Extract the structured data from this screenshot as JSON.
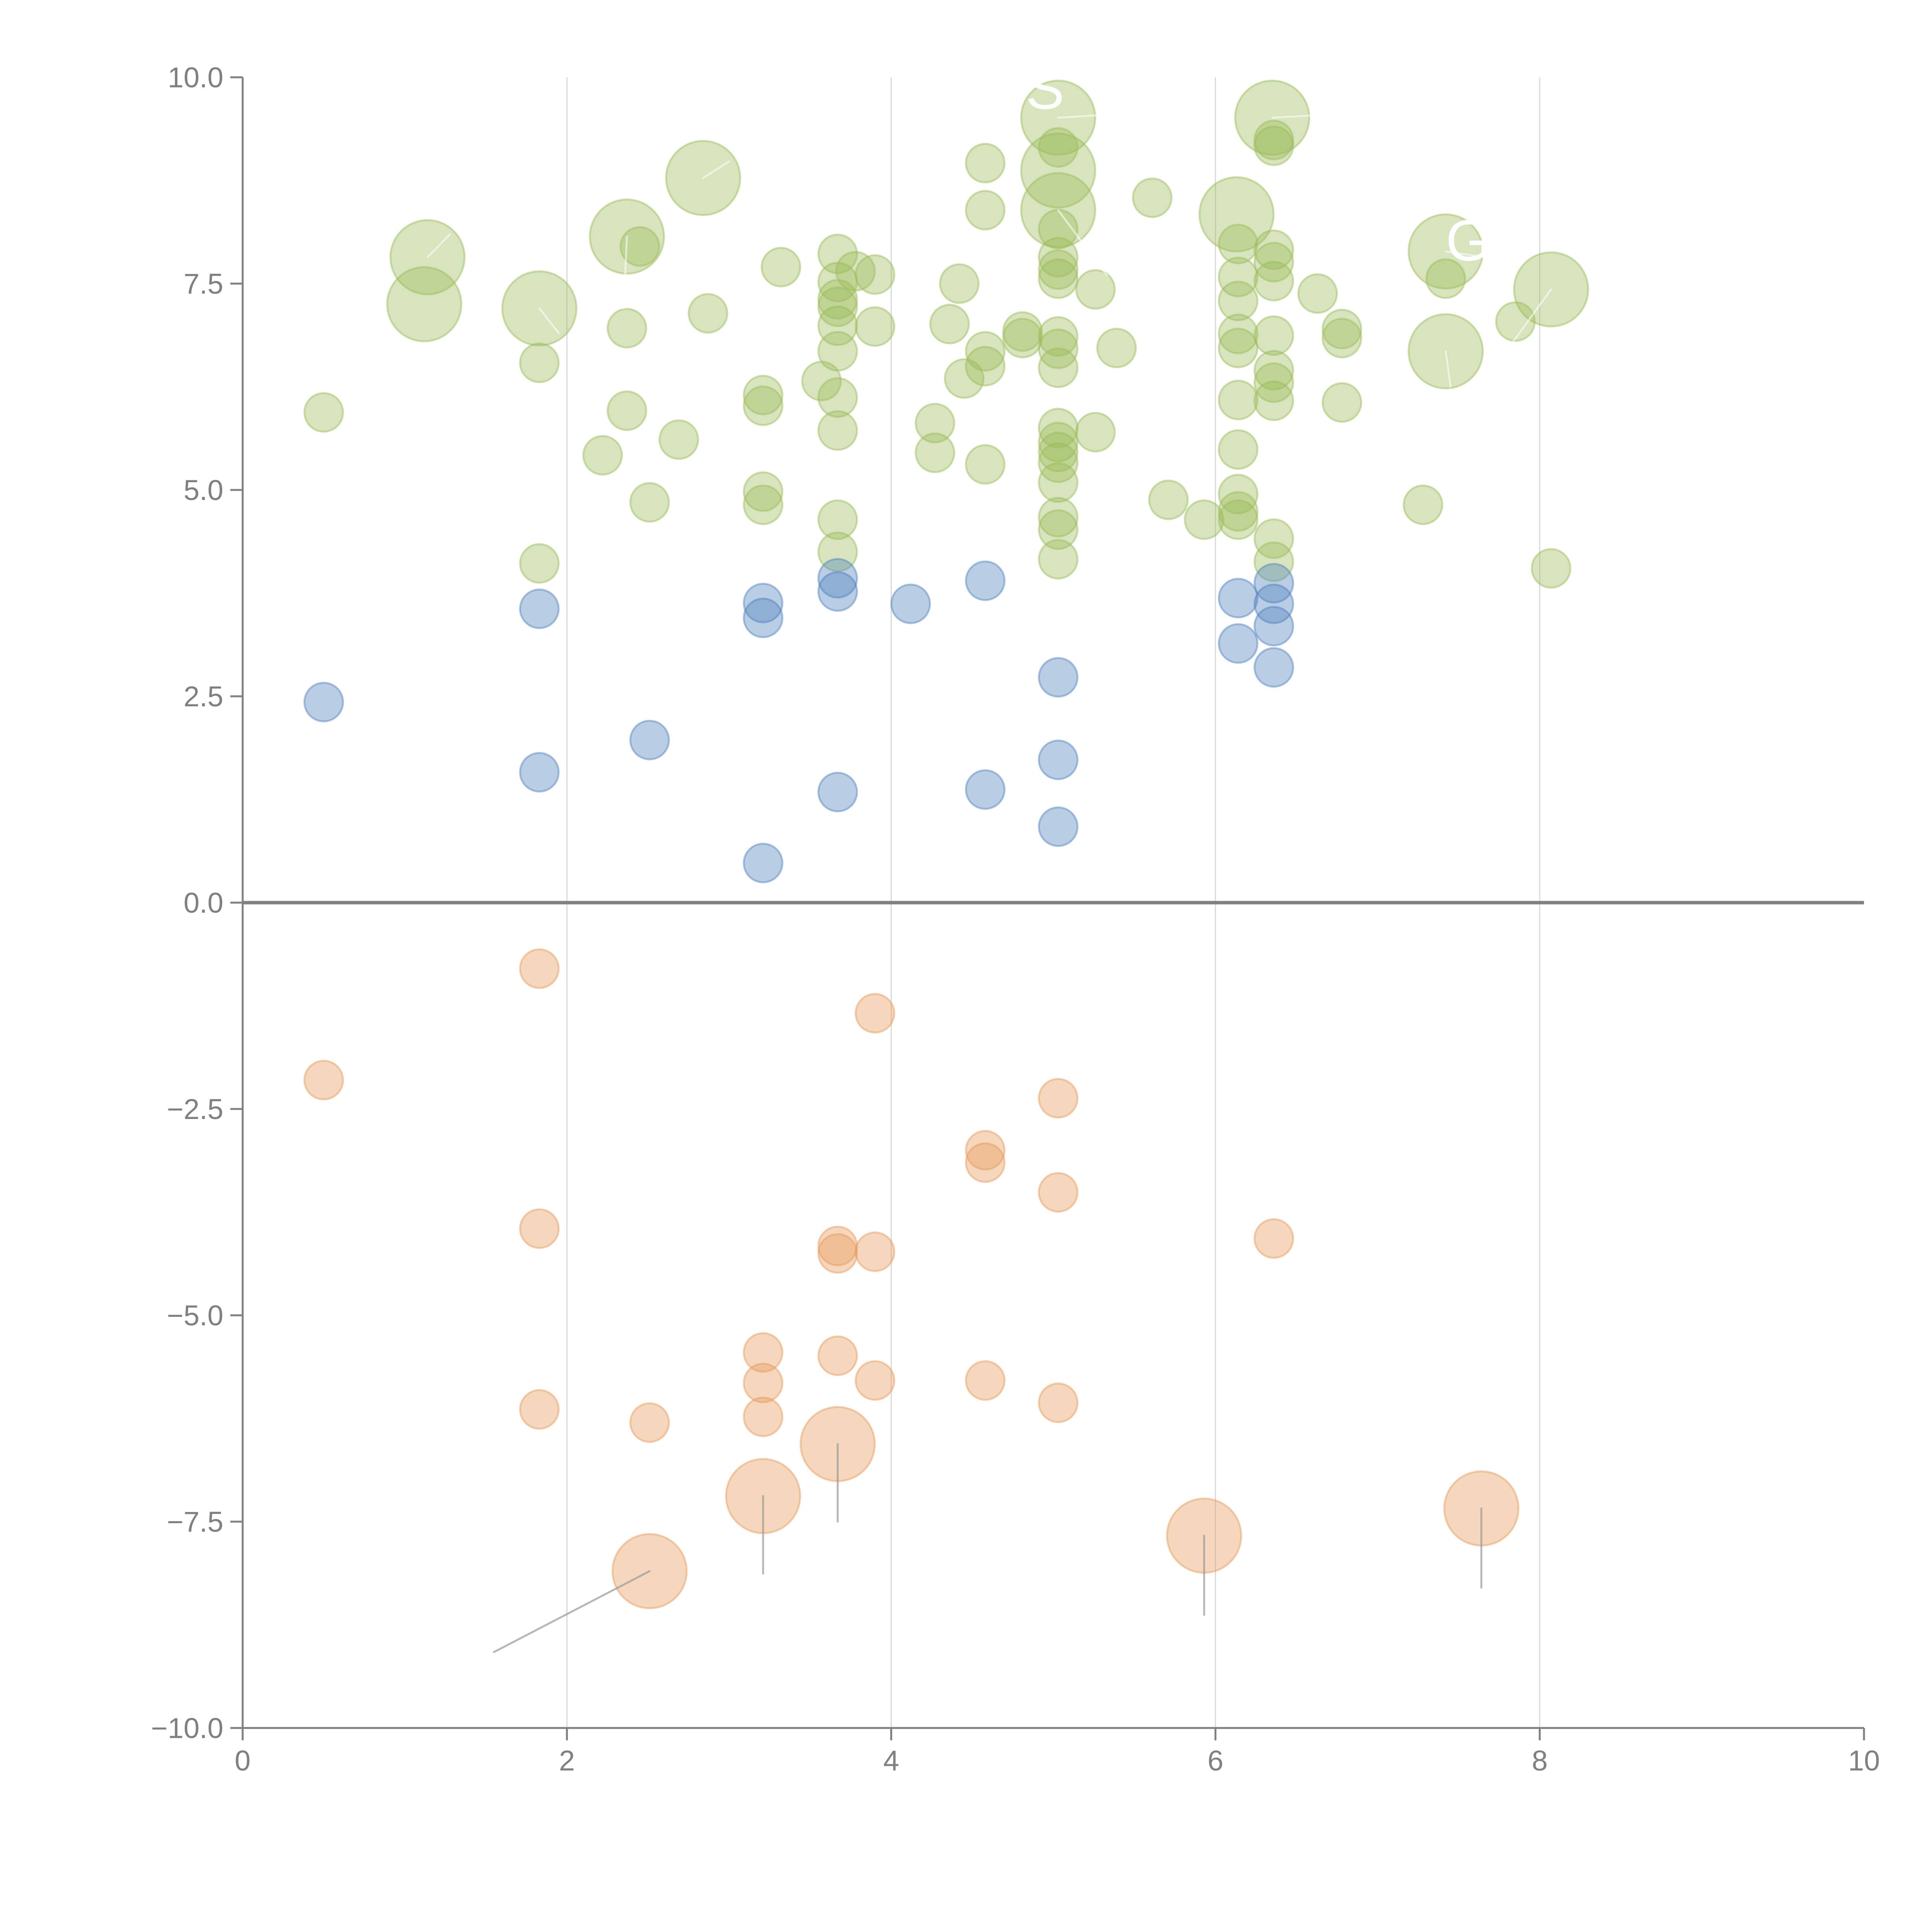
{
  "chart_data": {
    "type": "scatter",
    "title": "",
    "xlabel": "",
    "ylabel": "",
    "xlim": [
      0,
      10
    ],
    "ylim": [
      -10,
      10
    ],
    "x_ticks": [
      "0",
      "2",
      "4",
      "6",
      "8",
      "10"
    ],
    "y_ticks": [
      "10.0",
      "7.5",
      "5.0",
      "2.5",
      "0.0",
      "−2.5",
      "−5.0",
      "−7.5",
      "−10.0"
    ],
    "grid": "vertical at x=2,4,6,8",
    "zero_line": true,
    "legend": "none",
    "series": [
      {
        "name": "green",
        "color": "#9bbb59",
        "points": [
          [
            0.5,
            5.94,
            "s"
          ],
          [
            1.14,
            7.82,
            "l"
          ],
          [
            1.12,
            7.25,
            "l"
          ],
          [
            1.83,
            7.2,
            "l"
          ],
          [
            1.83,
            6.54,
            "s"
          ],
          [
            1.83,
            4.11,
            "s"
          ],
          [
            2.37,
            8.07,
            "l"
          ],
          [
            2.45,
            7.95,
            "s"
          ],
          [
            2.37,
            6.96,
            "s"
          ],
          [
            2.37,
            5.96,
            "s"
          ],
          [
            2.22,
            5.42,
            "s"
          ],
          [
            2.51,
            4.85,
            "s"
          ],
          [
            2.69,
            5.61,
            "s"
          ],
          [
            2.84,
            8.78,
            "l"
          ],
          [
            2.87,
            7.14,
            "s"
          ],
          [
            3.21,
            6.15,
            "s"
          ],
          [
            3.21,
            6.02,
            "s"
          ],
          [
            3.21,
            4.98,
            "s"
          ],
          [
            3.21,
            4.82,
            "s"
          ],
          [
            3.32,
            7.7,
            "s"
          ],
          [
            3.57,
            6.32,
            "s"
          ],
          [
            3.67,
            7.86,
            "s"
          ],
          [
            3.67,
            7.52,
            "s"
          ],
          [
            3.67,
            7.31,
            "s"
          ],
          [
            3.67,
            7.22,
            "s"
          ],
          [
            3.67,
            6.99,
            "s"
          ],
          [
            3.67,
            6.68,
            "s"
          ],
          [
            3.67,
            6.12,
            "s"
          ],
          [
            3.67,
            5.72,
            "s"
          ],
          [
            3.67,
            4.64,
            "s"
          ],
          [
            3.67,
            4.25,
            "s"
          ],
          [
            3.78,
            7.65,
            "s"
          ],
          [
            3.9,
            7.61,
            "s"
          ],
          [
            3.9,
            6.98,
            "s"
          ],
          [
            4.27,
            5.81,
            "s"
          ],
          [
            4.27,
            5.45,
            "s"
          ],
          [
            4.36,
            7.01,
            "s"
          ],
          [
            4.42,
            7.5,
            "s"
          ],
          [
            4.45,
            6.35,
            "s"
          ],
          [
            4.58,
            8.96,
            "s"
          ],
          [
            4.58,
            8.39,
            "s"
          ],
          [
            4.58,
            6.68,
            "s"
          ],
          [
            4.58,
            6.5,
            "s"
          ],
          [
            4.58,
            5.31,
            "s"
          ],
          [
            4.81,
            6.92,
            "s"
          ],
          [
            4.81,
            6.84,
            "s"
          ],
          [
            5.03,
            9.51,
            "l"
          ],
          [
            5.03,
            9.15,
            "s"
          ],
          [
            5.03,
            8.87,
            "l"
          ],
          [
            5.03,
            8.39,
            "l"
          ],
          [
            5.03,
            8.16,
            "s"
          ],
          [
            5.03,
            7.82,
            "s"
          ],
          [
            5.03,
            7.67,
            "s"
          ],
          [
            5.03,
            7.56,
            "s"
          ],
          [
            5.03,
            6.86,
            "s"
          ],
          [
            5.03,
            6.71,
            "s"
          ],
          [
            5.03,
            6.48,
            "s"
          ],
          [
            5.03,
            5.75,
            "s"
          ],
          [
            5.03,
            5.58,
            "s"
          ],
          [
            5.03,
            5.46,
            "s"
          ],
          [
            5.03,
            5.33,
            "s"
          ],
          [
            5.03,
            5.09,
            "s"
          ],
          [
            5.03,
            4.67,
            "s"
          ],
          [
            5.03,
            4.52,
            "s"
          ],
          [
            5.03,
            4.16,
            "s"
          ],
          [
            5.26,
            7.43,
            "s"
          ],
          [
            5.26,
            5.7,
            "s"
          ],
          [
            5.39,
            6.72,
            "s"
          ],
          [
            5.61,
            8.54,
            "s"
          ],
          [
            5.71,
            4.88,
            "s"
          ],
          [
            5.93,
            4.64,
            "s"
          ],
          [
            6.13,
            8.34,
            "l"
          ],
          [
            6.14,
            7.98,
            "s"
          ],
          [
            6.14,
            7.58,
            "s"
          ],
          [
            6.14,
            7.29,
            "s"
          ],
          [
            6.14,
            6.89,
            "s"
          ],
          [
            6.14,
            6.72,
            "s"
          ],
          [
            6.14,
            6.09,
            "s"
          ],
          [
            6.14,
            5.49,
            "s"
          ],
          [
            6.14,
            4.95,
            "s"
          ],
          [
            6.14,
            4.74,
            "s"
          ],
          [
            6.14,
            4.64,
            "s"
          ],
          [
            6.35,
            9.51,
            "l"
          ],
          [
            6.36,
            9.24,
            "s"
          ],
          [
            6.36,
            9.17,
            "s"
          ],
          [
            6.36,
            7.91,
            "s"
          ],
          [
            6.36,
            7.76,
            "s"
          ],
          [
            6.36,
            7.53,
            "s"
          ],
          [
            6.36,
            6.87,
            "s"
          ],
          [
            6.36,
            6.45,
            "s"
          ],
          [
            6.36,
            6.3,
            "s"
          ],
          [
            6.36,
            6.08,
            "s"
          ],
          [
            6.36,
            4.41,
            "s"
          ],
          [
            6.36,
            4.13,
            "s"
          ],
          [
            6.63,
            7.38,
            "s"
          ],
          [
            6.78,
            6.95,
            "s"
          ],
          [
            6.78,
            6.84,
            "s"
          ],
          [
            6.78,
            6.06,
            "s"
          ],
          [
            7.28,
            4.82,
            "s"
          ],
          [
            7.42,
            7.89,
            "l"
          ],
          [
            7.42,
            7.56,
            "s"
          ],
          [
            7.42,
            6.68,
            "l"
          ],
          [
            7.85,
            7.04,
            "s"
          ],
          [
            8.07,
            7.43,
            "l"
          ],
          [
            8.07,
            4.05,
            "s"
          ]
        ]
      },
      {
        "name": "blue",
        "color": "#4f81bd",
        "points": [
          [
            0.5,
            2.43,
            "s"
          ],
          [
            1.83,
            3.56,
            "s"
          ],
          [
            1.83,
            1.58,
            "s"
          ],
          [
            2.51,
            1.97,
            "s"
          ],
          [
            3.21,
            3.63,
            "s"
          ],
          [
            3.21,
            3.45,
            "s"
          ],
          [
            3.21,
            0.48,
            "s"
          ],
          [
            3.67,
            3.93,
            "s"
          ],
          [
            3.67,
            3.77,
            "s"
          ],
          [
            3.67,
            1.34,
            "s"
          ],
          [
            4.12,
            3.62,
            "s"
          ],
          [
            4.58,
            3.9,
            "s"
          ],
          [
            4.58,
            1.37,
            "s"
          ],
          [
            5.03,
            2.73,
            "s"
          ],
          [
            5.03,
            1.73,
            "s"
          ],
          [
            5.03,
            0.92,
            "s"
          ],
          [
            6.14,
            3.69,
            "s"
          ],
          [
            6.14,
            3.14,
            "s"
          ],
          [
            6.36,
            3.87,
            "s"
          ],
          [
            6.36,
            3.62,
            "s"
          ],
          [
            6.36,
            3.35,
            "s"
          ],
          [
            6.36,
            2.85,
            "s"
          ]
        ]
      },
      {
        "name": "orange",
        "color": "#e69a5a",
        "points": [
          [
            0.5,
            -2.15,
            "s"
          ],
          [
            1.83,
            -0.8,
            "s"
          ],
          [
            1.83,
            -3.95,
            "s"
          ],
          [
            1.83,
            -6.14,
            "s"
          ],
          [
            2.51,
            -6.3,
            "s"
          ],
          [
            2.51,
            -8.1,
            "l"
          ],
          [
            3.21,
            -5.45,
            "s"
          ],
          [
            3.21,
            -5.82,
            "s"
          ],
          [
            3.21,
            -6.23,
            "s"
          ],
          [
            3.21,
            -7.19,
            "l"
          ],
          [
            3.67,
            -4.16,
            "s"
          ],
          [
            3.67,
            -4.25,
            "s"
          ],
          [
            3.67,
            -5.49,
            "s"
          ],
          [
            3.67,
            -6.56,
            "l"
          ],
          [
            3.9,
            -1.34,
            "s"
          ],
          [
            3.9,
            -4.23,
            "s"
          ],
          [
            3.9,
            -5.79,
            "s"
          ],
          [
            4.58,
            -3.0,
            "s"
          ],
          [
            4.58,
            -3.15,
            "s"
          ],
          [
            4.58,
            -5.79,
            "s"
          ],
          [
            5.03,
            -2.37,
            "s"
          ],
          [
            5.03,
            -3.51,
            "s"
          ],
          [
            5.03,
            -6.06,
            "s"
          ],
          [
            5.93,
            -7.67,
            "l"
          ],
          [
            6.36,
            -4.07,
            "s"
          ],
          [
            7.64,
            -7.34,
            "l"
          ]
        ]
      }
    ],
    "leader_lines": [
      {
        "series": "orange",
        "from": [
          2.51,
          -8.1
        ],
        "to": [
          1.55,
          -9.08
        ],
        "color": "#999999"
      },
      {
        "series": "orange",
        "from": [
          3.21,
          -7.19
        ],
        "to": [
          3.21,
          -8.13
        ],
        "color": "#999999"
      },
      {
        "series": "orange",
        "from": [
          3.67,
          -6.56
        ],
        "to": [
          3.67,
          -7.5
        ],
        "color": "#999999"
      },
      {
        "series": "orange",
        "from": [
          5.93,
          -7.67
        ],
        "to": [
          5.93,
          -8.63
        ],
        "color": "#999999"
      },
      {
        "series": "orange",
        "from": [
          7.64,
          -7.34
        ],
        "to": [
          7.64,
          -8.3
        ],
        "color": "#999999"
      },
      {
        "series": "green",
        "from": [
          1.14,
          7.82
        ],
        "to": [
          1.28,
          8.1
        ],
        "color": "#ffffff"
      },
      {
        "series": "green",
        "from": [
          1.83,
          7.2
        ],
        "to": [
          1.95,
          6.9
        ],
        "color": "#ffffff"
      },
      {
        "series": "green",
        "from": [
          2.37,
          8.07
        ],
        "to": [
          2.35,
          7.2
        ],
        "color": "#ffffff"
      },
      {
        "series": "green",
        "from": [
          2.84,
          8.78
        ],
        "to": [
          3.0,
          8.98
        ],
        "color": "#ffffff"
      },
      {
        "series": "green",
        "from": [
          5.03,
          9.51
        ],
        "to": [
          5.45,
          9.56
        ],
        "color": "#ffffff"
      },
      {
        "series": "green",
        "from": [
          5.03,
          8.39
        ],
        "to": [
          5.33,
          7.6
        ],
        "color": "#ffffff"
      },
      {
        "series": "green",
        "from": [
          6.35,
          9.51
        ],
        "to": [
          6.8,
          9.56
        ],
        "color": "#ffffff"
      },
      {
        "series": "green",
        "from": [
          7.42,
          7.89
        ],
        "to": [
          7.73,
          7.8
        ],
        "color": "#ffffff"
      },
      {
        "series": "green",
        "from": [
          7.42,
          6.68
        ],
        "to": [
          7.45,
          6.25
        ],
        "color": "#ffffff"
      },
      {
        "series": "green",
        "from": [
          8.07,
          7.43
        ],
        "to": [
          7.8,
          6.7
        ],
        "color": "#ffffff"
      }
    ],
    "annotations": [
      {
        "text": "GL",
        "x": 7.42,
        "y": 7.78,
        "color": "#ffffff"
      },
      {
        "text": "S",
        "x": 4.83,
        "y": 9.62,
        "color": "#ffffff"
      }
    ]
  }
}
